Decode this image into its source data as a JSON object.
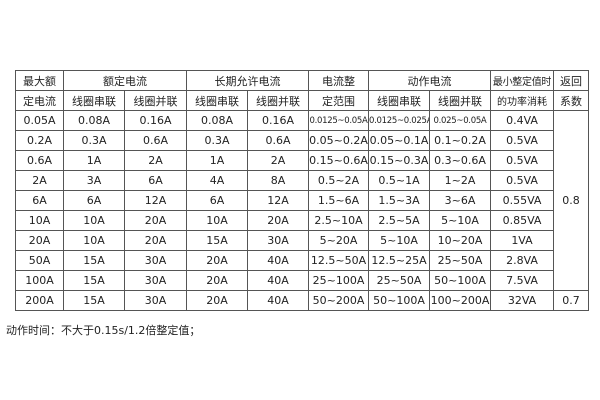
{
  "header": {
    "max_rated": [
      "最大额",
      "定电流"
    ],
    "rated": "额定电流",
    "long_term": "长期允许电流",
    "range": [
      "电流整",
      "定范围"
    ],
    "action": "动作电流",
    "min_power": [
      "最小整定值时",
      "的功率消耗"
    ],
    "return": [
      "返回",
      "系数"
    ],
    "series": "线圈串联",
    "parallel": "线圈并联"
  },
  "rows": [
    [
      "0.05A",
      "0.08A",
      "0.16A",
      "0.08A",
      "0.16A",
      "0.0125~0.05A",
      "0.0125~0.025A",
      "0.025~0.05A",
      "0.4VA"
    ],
    [
      "0.2A",
      "0.3A",
      "0.6A",
      "0.3A",
      "0.6A",
      "0.05~0.2A",
      "0.05~0.1A",
      "0.1~0.2A",
      "0.5VA"
    ],
    [
      "0.6A",
      "1A",
      "2A",
      "1A",
      "2A",
      "0.15~0.6A",
      "0.15~0.3A",
      "0.3~0.6A",
      "0.5VA"
    ],
    [
      "2A",
      "3A",
      "6A",
      "4A",
      "8A",
      "0.5~2A",
      "0.5~1A",
      "1~2A",
      "0.5VA"
    ],
    [
      "6A",
      "6A",
      "12A",
      "6A",
      "12A",
      "1.5~6A",
      "1.5~3A",
      "3~6A",
      "0.55VA"
    ],
    [
      "10A",
      "10A",
      "20A",
      "10A",
      "20A",
      "2.5~10A",
      "2.5~5A",
      "5~10A",
      "0.85VA"
    ],
    [
      "20A",
      "10A",
      "20A",
      "15A",
      "30A",
      "5~20A",
      "5~10A",
      "10~20A",
      "1VA"
    ],
    [
      "50A",
      "15A",
      "30A",
      "20A",
      "40A",
      "12.5~50A",
      "12.5~25A",
      "25~50A",
      "2.8VA"
    ],
    [
      "100A",
      "15A",
      "30A",
      "20A",
      "40A",
      "25~100A",
      "25~50A",
      "50~100A",
      "7.5VA"
    ],
    [
      "200A",
      "15A",
      "30A",
      "20A",
      "40A",
      "50~200A",
      "50~100A",
      "100~200A",
      "32VA"
    ]
  ],
  "return_values": [
    "0.8",
    "0.7"
  ],
  "note": "动作时间：不大于0.15s/1.2倍整定值；"
}
